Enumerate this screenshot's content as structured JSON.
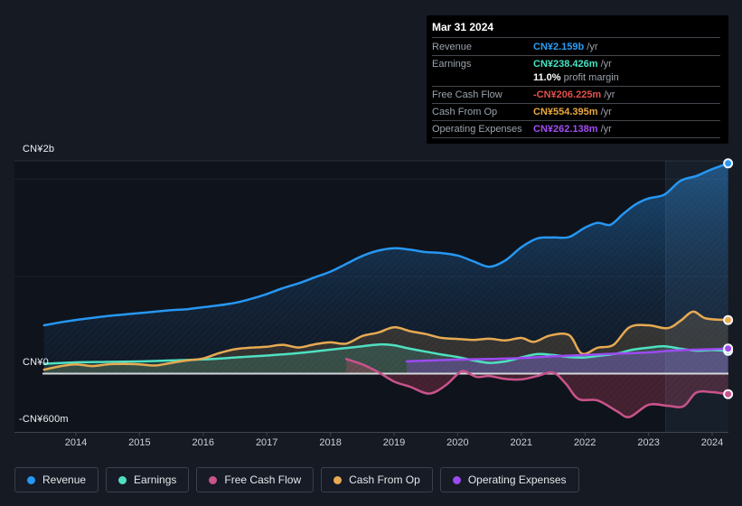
{
  "tooltip": {
    "date": "Mar 31 2024",
    "rows": [
      {
        "label": "Revenue",
        "value": "CN¥2.159b",
        "suffix": "/yr",
        "color": "#2b9df4"
      },
      {
        "label": "Earnings",
        "value": "CN¥238.426m",
        "suffix": "/yr",
        "color": "#46e3c3",
        "sub_strong": "11.0%",
        "sub_text": "profit margin"
      },
      {
        "label": "Free Cash Flow",
        "value": "-CN¥206.225m",
        "suffix": "/yr",
        "color": "#e2514b"
      },
      {
        "label": "Cash From Op",
        "value": "CN¥554.395m",
        "suffix": "/yr",
        "color": "#e9a93d"
      },
      {
        "label": "Operating Expenses",
        "value": "CN¥262.138m",
        "suffix": "/yr",
        "color": "#a44ef5"
      }
    ]
  },
  "y_axis": {
    "labels": {
      "top": "CN¥2b",
      "zero": "CN¥0",
      "bottom": "-CN¥600m"
    }
  },
  "x_axis": {
    "years": [
      2014,
      2015,
      2016,
      2017,
      2018,
      2019,
      2020,
      2021,
      2022,
      2023,
      2024
    ]
  },
  "legend": {
    "items": [
      {
        "label": "Revenue",
        "color": "#2697f3"
      },
      {
        "label": "Earnings",
        "color": "#4fe0c1"
      },
      {
        "label": "Free Cash Flow",
        "color": "#c9538c"
      },
      {
        "label": "Cash From Op",
        "color": "#e7aa52"
      },
      {
        "label": "Operating Expenses",
        "color": "#9b4bf0"
      }
    ]
  },
  "chart_data": {
    "type": "area",
    "title": "Earnings and revenue history",
    "unit": "CN¥ billions",
    "x_range": [
      2013.5,
      2024.3
    ],
    "ylim": [
      -0.62,
      2.2
    ],
    "grid": "horizontal",
    "legend_position": "bottom",
    "highlight_band_years": [
      2023.27,
      2024.3
    ],
    "y_gridline_values": [
      2.0,
      1.0,
      0,
      -0.6
    ],
    "series": [
      {
        "name": "Revenue",
        "key": "revenue",
        "color": "#2697f3",
        "fill": "gradient",
        "points": [
          [
            2013.5,
            0.5
          ],
          [
            2013.75,
            0.53
          ],
          [
            2014,
            0.555
          ],
          [
            2014.25,
            0.575
          ],
          [
            2014.5,
            0.595
          ],
          [
            2014.75,
            0.61
          ],
          [
            2015,
            0.625
          ],
          [
            2015.25,
            0.64
          ],
          [
            2015.5,
            0.655
          ],
          [
            2015.75,
            0.665
          ],
          [
            2016,
            0.685
          ],
          [
            2016.25,
            0.705
          ],
          [
            2016.5,
            0.73
          ],
          [
            2016.75,
            0.77
          ],
          [
            2017,
            0.82
          ],
          [
            2017.25,
            0.88
          ],
          [
            2017.5,
            0.93
          ],
          [
            2017.75,
            0.99
          ],
          [
            2018,
            1.05
          ],
          [
            2018.25,
            1.13
          ],
          [
            2018.5,
            1.21
          ],
          [
            2018.75,
            1.265
          ],
          [
            2019,
            1.29
          ],
          [
            2019.25,
            1.275
          ],
          [
            2019.5,
            1.25
          ],
          [
            2019.75,
            1.24
          ],
          [
            2020,
            1.215
          ],
          [
            2020.25,
            1.155
          ],
          [
            2020.5,
            1.1
          ],
          [
            2020.75,
            1.165
          ],
          [
            2021,
            1.3
          ],
          [
            2021.25,
            1.39
          ],
          [
            2021.5,
            1.4
          ],
          [
            2021.75,
            1.405
          ],
          [
            2022,
            1.5
          ],
          [
            2022.2,
            1.55
          ],
          [
            2022.4,
            1.53
          ],
          [
            2022.6,
            1.64
          ],
          [
            2022.8,
            1.74
          ],
          [
            2023,
            1.8
          ],
          [
            2023.25,
            1.84
          ],
          [
            2023.5,
            1.98
          ],
          [
            2023.75,
            2.03
          ],
          [
            2024,
            2.1
          ],
          [
            2024.25,
            2.159
          ]
        ]
      },
      {
        "name": "Cash From Op",
        "key": "cash-from-op",
        "color": "#e7aa52",
        "fill": "rgba(231,170,82,0.16)",
        "points": [
          [
            2013.5,
            0.045
          ],
          [
            2013.75,
            0.08
          ],
          [
            2014,
            0.1
          ],
          [
            2014.25,
            0.082
          ],
          [
            2014.5,
            0.1
          ],
          [
            2014.75,
            0.105
          ],
          [
            2015,
            0.1
          ],
          [
            2015.25,
            0.088
          ],
          [
            2015.5,
            0.115
          ],
          [
            2015.75,
            0.14
          ],
          [
            2016,
            0.16
          ],
          [
            2016.25,
            0.215
          ],
          [
            2016.5,
            0.255
          ],
          [
            2016.75,
            0.27
          ],
          [
            2017,
            0.28
          ],
          [
            2017.25,
            0.3
          ],
          [
            2017.5,
            0.272
          ],
          [
            2017.75,
            0.305
          ],
          [
            2018,
            0.325
          ],
          [
            2018.25,
            0.312
          ],
          [
            2018.5,
            0.39
          ],
          [
            2018.75,
            0.425
          ],
          [
            2019,
            0.48
          ],
          [
            2019.25,
            0.44
          ],
          [
            2019.5,
            0.41
          ],
          [
            2019.75,
            0.37
          ],
          [
            2020,
            0.36
          ],
          [
            2020.25,
            0.35
          ],
          [
            2020.5,
            0.362
          ],
          [
            2020.75,
            0.345
          ],
          [
            2021,
            0.37
          ],
          [
            2021.2,
            0.33
          ],
          [
            2021.45,
            0.395
          ],
          [
            2021.75,
            0.4
          ],
          [
            2021.95,
            0.21
          ],
          [
            2022.2,
            0.27
          ],
          [
            2022.45,
            0.3
          ],
          [
            2022.7,
            0.48
          ],
          [
            2023,
            0.5
          ],
          [
            2023.3,
            0.47
          ],
          [
            2023.5,
            0.545
          ],
          [
            2023.7,
            0.64
          ],
          [
            2023.9,
            0.57
          ],
          [
            2024.25,
            0.554
          ]
        ]
      },
      {
        "name": "Earnings",
        "key": "earnings",
        "color": "#4fe0c1",
        "fill": "rgba(79,224,193,0.17)",
        "points": [
          [
            2013.5,
            0.105
          ],
          [
            2014,
            0.12
          ],
          [
            2014.5,
            0.125
          ],
          [
            2015,
            0.13
          ],
          [
            2015.5,
            0.14
          ],
          [
            2016,
            0.15
          ],
          [
            2016.5,
            0.17
          ],
          [
            2017,
            0.19
          ],
          [
            2017.5,
            0.215
          ],
          [
            2018,
            0.25
          ],
          [
            2018.5,
            0.285
          ],
          [
            2018.8,
            0.305
          ],
          [
            2019,
            0.295
          ],
          [
            2019.25,
            0.26
          ],
          [
            2019.5,
            0.23
          ],
          [
            2019.75,
            0.2
          ],
          [
            2020,
            0.175
          ],
          [
            2020.25,
            0.14
          ],
          [
            2020.5,
            0.115
          ],
          [
            2020.75,
            0.13
          ],
          [
            2021,
            0.17
          ],
          [
            2021.25,
            0.205
          ],
          [
            2021.5,
            0.195
          ],
          [
            2021.75,
            0.175
          ],
          [
            2022,
            0.17
          ],
          [
            2022.25,
            0.19
          ],
          [
            2022.5,
            0.21
          ],
          [
            2022.75,
            0.25
          ],
          [
            2023,
            0.27
          ],
          [
            2023.25,
            0.285
          ],
          [
            2023.5,
            0.26
          ],
          [
            2023.75,
            0.24
          ],
          [
            2024,
            0.246
          ],
          [
            2024.25,
            0.238
          ]
        ]
      },
      {
        "name": "Operating Expenses",
        "key": "operating-expenses",
        "color": "#9b4bf0",
        "fill": "rgba(155,75,240,0.30)",
        "points": [
          [
            2019.2,
            0.13
          ],
          [
            2019.5,
            0.138
          ],
          [
            2020,
            0.148
          ],
          [
            2020.5,
            0.155
          ],
          [
            2021,
            0.165
          ],
          [
            2021.5,
            0.182
          ],
          [
            2022,
            0.195
          ],
          [
            2022.3,
            0.205
          ],
          [
            2022.6,
            0.212
          ],
          [
            2023,
            0.222
          ],
          [
            2023.3,
            0.237
          ],
          [
            2023.6,
            0.247
          ],
          [
            2024,
            0.255
          ],
          [
            2024.25,
            0.262
          ]
        ]
      },
      {
        "name": "Free Cash Flow",
        "key": "free-cash-flow",
        "color": "#c9538c",
        "fill": "rgba(207,70,105,0.27)",
        "points": [
          [
            2018.25,
            0.155
          ],
          [
            2018.5,
            0.1
          ],
          [
            2018.75,
            0.02
          ],
          [
            2019,
            -0.076
          ],
          [
            2019.25,
            -0.13
          ],
          [
            2019.55,
            -0.2
          ],
          [
            2019.8,
            -0.12
          ],
          [
            2020,
            0.0
          ],
          [
            2020.1,
            0.03
          ],
          [
            2020.3,
            -0.03
          ],
          [
            2020.5,
            -0.02
          ],
          [
            2020.75,
            -0.05
          ],
          [
            2021,
            -0.055
          ],
          [
            2021.25,
            -0.02
          ],
          [
            2021.5,
            0.015
          ],
          [
            2021.7,
            -0.1
          ],
          [
            2021.9,
            -0.256
          ],
          [
            2022.2,
            -0.27
          ],
          [
            2022.5,
            -0.38
          ],
          [
            2022.7,
            -0.44
          ],
          [
            2023,
            -0.315
          ],
          [
            2023.3,
            -0.325
          ],
          [
            2023.55,
            -0.33
          ],
          [
            2023.75,
            -0.19
          ],
          [
            2024,
            -0.185
          ],
          [
            2024.25,
            -0.206
          ]
        ]
      }
    ]
  }
}
